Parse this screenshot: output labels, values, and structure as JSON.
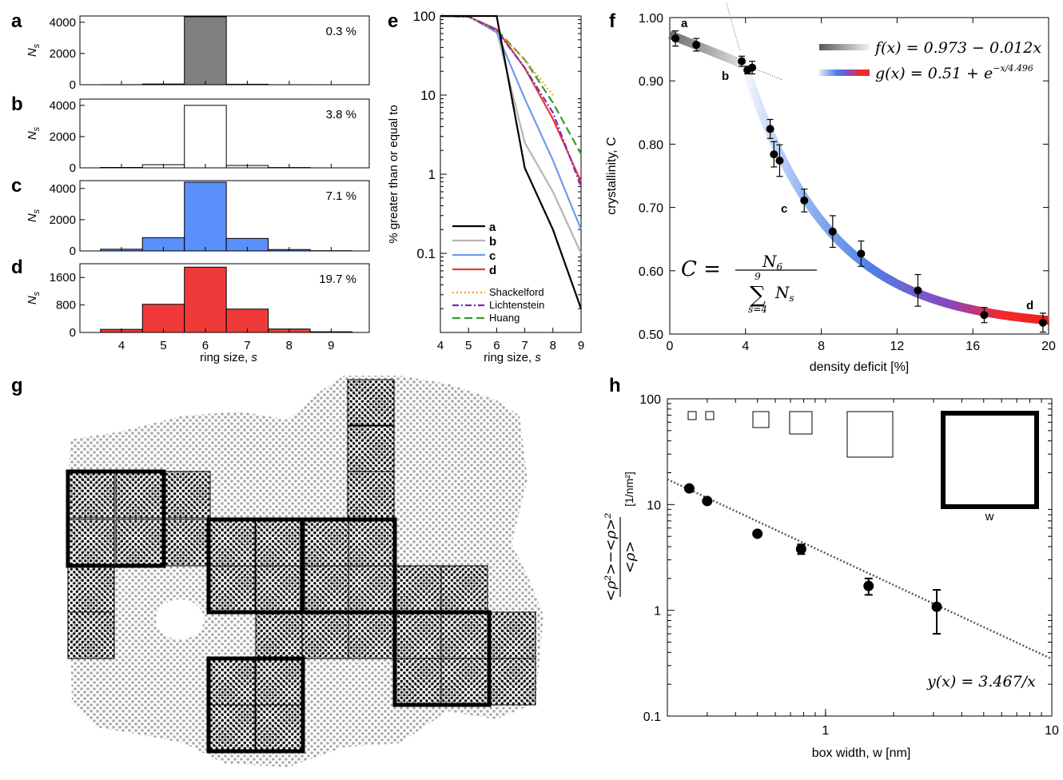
{
  "panel_letters": {
    "a": "a",
    "b": "b",
    "c": "c",
    "d": "d",
    "e": "e",
    "f": "f",
    "g": "g",
    "h": "h"
  },
  "colors": {
    "a": "#808080",
    "b": "#ffffff",
    "c": "#5b8ff9",
    "d": "#f03a3a",
    "e_a": "#000000",
    "e_b": "#b5b5b5",
    "e_c": "#6e9af0",
    "e_d": "#ef3b36",
    "shackelford": "#ff9c1a",
    "lichtenstein": "#7a2bb8",
    "huang": "#2e9e2e"
  },
  "chart_data": [
    {
      "panel": "a",
      "type": "bar",
      "ylabel": "N_s",
      "annotation": "0.3 %",
      "categories": [
        4,
        5,
        6,
        7,
        8,
        9
      ],
      "values": [
        5,
        45,
        4350,
        30,
        2,
        0
      ],
      "ylim": [
        0,
        4400
      ],
      "yticks": [
        0,
        2000,
        4000
      ]
    },
    {
      "panel": "b",
      "type": "bar",
      "ylabel": "N_s",
      "annotation": "3.8 %",
      "categories": [
        4,
        5,
        6,
        7,
        8,
        9
      ],
      "values": [
        25,
        200,
        4000,
        150,
        20,
        0
      ],
      "ylim": [
        0,
        4400
      ],
      "yticks": [
        0,
        2000,
        4000
      ]
    },
    {
      "panel": "c",
      "type": "bar",
      "ylabel": "N_s",
      "annotation": "7.1 %",
      "categories": [
        4,
        5,
        6,
        7,
        8,
        9
      ],
      "values": [
        110,
        850,
        4400,
        800,
        90,
        15
      ],
      "ylim": [
        0,
        4500
      ],
      "yticks": [
        0,
        2000,
        4000
      ]
    },
    {
      "panel": "d",
      "type": "bar",
      "ylabel": "N_s",
      "annotation": "19.7 %",
      "xlabel": "ring size, s",
      "xticks": [
        4,
        5,
        6,
        7,
        8,
        9
      ],
      "categories": [
        4,
        5,
        6,
        7,
        8,
        9
      ],
      "values": [
        90,
        820,
        1900,
        680,
        100,
        20
      ],
      "ylim": [
        0,
        2000
      ],
      "yticks": [
        0,
        800,
        1600
      ]
    },
    {
      "panel": "e",
      "type": "line",
      "ylog": true,
      "xlabel": "ring size, s",
      "ylabel": "% greater than or equal to",
      "xlim": [
        4,
        9
      ],
      "ylim": [
        0.01,
        100
      ],
      "xticks": [
        4,
        5,
        6,
        7,
        8,
        9
      ],
      "yticks": [
        0.1,
        1,
        10,
        100
      ],
      "yticklabels": [
        "0.1",
        "1",
        "10",
        "100"
      ],
      "series": [
        {
          "name": "a",
          "style": "solid",
          "x": [
            4,
            5,
            6,
            7,
            8,
            9
          ],
          "y": [
            100,
            100,
            99.9,
            1.2,
            0.2,
            0.02
          ]
        },
        {
          "name": "b",
          "style": "solid",
          "x": [
            4,
            5,
            6,
            7,
            8,
            9
          ],
          "y": [
            100,
            99.8,
            65,
            2.5,
            0.6,
            0.1
          ]
        },
        {
          "name": "c",
          "style": "solid",
          "x": [
            4,
            5,
            6,
            7,
            8,
            9
          ],
          "y": [
            100,
            99,
            62,
            9,
            1.5,
            0.2
          ]
        },
        {
          "name": "d",
          "style": "solid",
          "x": [
            4,
            5,
            6,
            7,
            8,
            9
          ],
          "y": [
            100,
            98,
            68,
            22,
            5,
            0.8
          ]
        },
        {
          "name": "Shackelford",
          "style": "dotted",
          "x": [
            4,
            5,
            6,
            7,
            8
          ],
          "y": [
            100,
            98,
            65,
            28,
            10
          ]
        },
        {
          "name": "Lichtenstein",
          "style": "dashdot",
          "x": [
            4,
            5,
            6,
            7,
            8,
            9
          ],
          "y": [
            100,
            98,
            66,
            22,
            6,
            0.7
          ]
        },
        {
          "name": "Huang",
          "style": "dashed",
          "x": [
            4,
            5,
            6,
            7,
            8,
            9
          ],
          "y": [
            100,
            98,
            67,
            28,
            8,
            1.8
          ]
        }
      ]
    },
    {
      "panel": "f",
      "type": "scatter",
      "xlabel": "density deficit [%]",
      "ylabel": "crystallinity, C",
      "xlim": [
        0,
        20
      ],
      "ylim": [
        0.5,
        1.0
      ],
      "xticks": [
        0,
        4,
        8,
        12,
        16,
        20
      ],
      "yticks": [
        0.5,
        0.6,
        0.7,
        0.8,
        0.9,
        1.0
      ],
      "yticklabels": [
        "0.50",
        "0.60",
        "0.70",
        "0.80",
        "0.90",
        "1.00"
      ],
      "points": [
        {
          "x": 0.3,
          "y": 0.967,
          "err": 0.012,
          "label": "a"
        },
        {
          "x": 1.4,
          "y": 0.957,
          "err": 0.01,
          "label": ""
        },
        {
          "x": 3.8,
          "y": 0.931,
          "err": 0.008,
          "label": "b"
        },
        {
          "x": 4.1,
          "y": 0.917,
          "err": 0.006,
          "label": ""
        },
        {
          "x": 4.35,
          "y": 0.921,
          "err": 0.01,
          "label": ""
        },
        {
          "x": 5.3,
          "y": 0.824,
          "err": 0.015,
          "label": ""
        },
        {
          "x": 5.5,
          "y": 0.784,
          "err": 0.02,
          "label": ""
        },
        {
          "x": 5.8,
          "y": 0.774,
          "err": 0.025,
          "label": ""
        },
        {
          "x": 7.1,
          "y": 0.711,
          "err": 0.018,
          "label": "c"
        },
        {
          "x": 8.6,
          "y": 0.662,
          "err": 0.025,
          "label": ""
        },
        {
          "x": 10.1,
          "y": 0.627,
          "err": 0.02,
          "label": ""
        },
        {
          "x": 13.1,
          "y": 0.569,
          "err": 0.025,
          "label": ""
        },
        {
          "x": 16.6,
          "y": 0.53,
          "err": 0.012,
          "label": ""
        },
        {
          "x": 19.7,
          "y": 0.518,
          "err": 0.015,
          "label": "d"
        }
      ],
      "fits": [
        {
          "name": "f(x) = 0.973 − 0.012x",
          "a": 0.973,
          "b": -0.012,
          "range": [
            0,
            4
          ]
        },
        {
          "name": "g(x) = 0.51 + e^(−x/4.496)",
          "c": 0.51,
          "tau": 4.496,
          "range": [
            4,
            20
          ]
        }
      ],
      "equation": {
        "lhs": "C =",
        "numerator": "N",
        "numerator_sub": "6",
        "sum_top": "9",
        "sum_bottom": "s=4",
        "sum_term": "N",
        "sum_term_sub": "s"
      }
    },
    {
      "panel": "h",
      "type": "scatter",
      "xlog": true,
      "ylog": true,
      "xlabel": "box width, w [nm]",
      "ylabel": "(<ρ²> − <ρ>²) / <ρ>",
      "yunit": "[1/nm²]",
      "xlim": [
        0.2,
        10
      ],
      "ylim": [
        0.1,
        100
      ],
      "xticks": [
        1,
        10
      ],
      "yticks": [
        0.1,
        1,
        10,
        100
      ],
      "yticklabels": [
        "0.1",
        "1",
        "10",
        "100"
      ],
      "points": [
        {
          "x": 0.25,
          "y": 14.2,
          "err": 0.0
        },
        {
          "x": 0.3,
          "y": 10.8,
          "err": 0.0
        },
        {
          "x": 0.5,
          "y": 5.3,
          "err": 0.0
        },
        {
          "x": 0.78,
          "y": 3.8,
          "err": 0.4
        },
        {
          "x": 1.55,
          "y": 1.7,
          "err": 0.3
        },
        {
          "x": 3.1,
          "y": 1.08,
          "err": 0.48
        }
      ],
      "fit": {
        "name": "y(x) = 3.467/x",
        "k": 3.467
      },
      "inset_label": "w"
    }
  ],
  "panel_g": {
    "image": "amorphous silica bilayer with overlaid box grid"
  }
}
